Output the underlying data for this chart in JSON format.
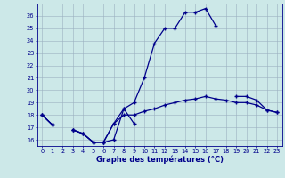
{
  "title": "Graphe des températures (°C)",
  "bg_color": "#cce8e8",
  "line_color": "#00008b",
  "grid_color": "#9ab0c0",
  "hours": [
    0,
    1,
    2,
    3,
    4,
    5,
    6,
    7,
    8,
    9,
    10,
    11,
    12,
    13,
    14,
    15,
    16,
    17,
    18,
    19,
    20,
    21,
    22,
    23
  ],
  "curve_main": [
    18.0,
    17.2,
    null,
    16.8,
    16.5,
    15.8,
    15.8,
    17.3,
    18.5,
    19.0,
    21.0,
    23.8,
    25.0,
    25.0,
    26.3,
    26.3,
    26.6,
    25.2,
    null,
    19.5,
    19.5,
    19.2,
    18.4,
    18.2
  ],
  "curve_mid": [
    18.0,
    17.2,
    null,
    16.8,
    16.5,
    15.8,
    15.8,
    17.3,
    18.0,
    18.0,
    18.3,
    18.5,
    18.8,
    19.0,
    19.2,
    19.3,
    19.5,
    19.3,
    19.2,
    19.0,
    19.0,
    18.8,
    18.4,
    18.2
  ],
  "curve_low": [
    18.0,
    17.2,
    null,
    16.8,
    16.5,
    15.8,
    15.8,
    16.0,
    18.5,
    17.3,
    null,
    null,
    null,
    null,
    null,
    null,
    null,
    null,
    null,
    null,
    null,
    null,
    null,
    null
  ],
  "ylim": [
    15.5,
    27.0
  ],
  "yticks": [
    16,
    17,
    18,
    19,
    20,
    21,
    22,
    23,
    24,
    25,
    26
  ],
  "xlim": [
    -0.5,
    23.5
  ],
  "xticks": [
    0,
    1,
    2,
    3,
    4,
    5,
    6,
    7,
    8,
    9,
    10,
    11,
    12,
    13,
    14,
    15,
    16,
    17,
    18,
    19,
    20,
    21,
    22,
    23
  ],
  "xlabel_fontsize": 6.0,
  "tick_fontsize": 4.8,
  "linewidth": 0.9,
  "markersize": 3.5,
  "marker_lw": 1.0
}
